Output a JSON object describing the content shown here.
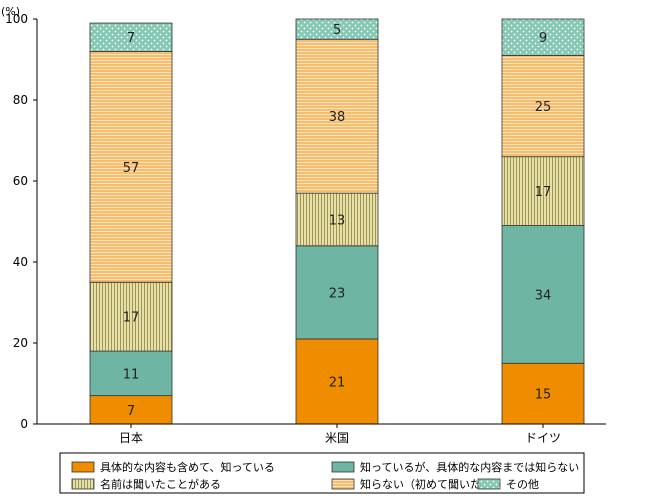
{
  "chart_data": {
    "type": "bar",
    "stacked": true,
    "unit_label": "(%)",
    "categories": [
      "日本",
      "米国",
      "ドイツ"
    ],
    "ylim": [
      0,
      100
    ],
    "yticks": [
      0,
      20,
      40,
      60,
      80,
      100
    ],
    "grid": false,
    "legend_position": "bottom",
    "series": [
      {
        "name": "具体的な内容も含めて、知っている",
        "values": [
          7,
          21,
          15
        ],
        "color": "#f08c00",
        "pattern": "solid"
      },
      {
        "name": "知っているが、具体的な内容までは知らない",
        "values": [
          11,
          23,
          34
        ],
        "color": "#6eb5a4",
        "pattern": "solid"
      },
      {
        "name": "名前は聞いたことがある",
        "values": [
          17,
          13,
          17
        ],
        "color": "#d8d08a",
        "pattern": "vertical-lines"
      },
      {
        "name": "知らない（初めて聞いた）",
        "values": [
          57,
          38,
          25
        ],
        "color": "#f6b55f",
        "pattern": "horizontal-lines"
      },
      {
        "name": "その他",
        "values": [
          7,
          5,
          9
        ],
        "color": "#86c7b6",
        "pattern": "dots"
      }
    ]
  }
}
